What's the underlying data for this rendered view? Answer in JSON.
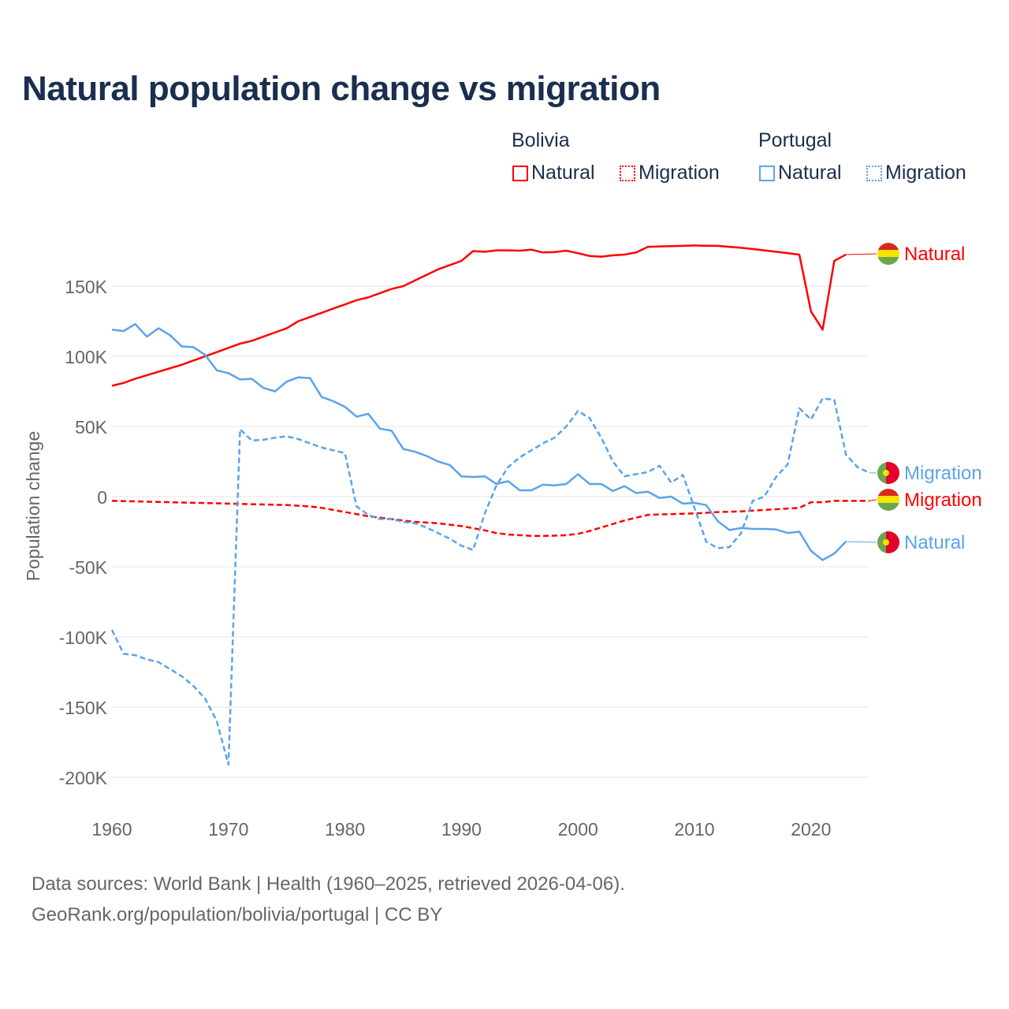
{
  "chart_data": {
    "type": "line",
    "title": "Natural population change vs migration",
    "xlabel": "",
    "ylabel": "Population change",
    "xlim": [
      1960,
      2025
    ],
    "ylim": [
      -200000,
      150000
    ],
    "x_ticks": [
      "1960",
      "1970",
      "1980",
      "1990",
      "2000",
      "2010",
      "2020"
    ],
    "y_ticks": [
      {
        "v": 150000,
        "label": "150K"
      },
      {
        "v": 100000,
        "label": "100K"
      },
      {
        "v": 50000,
        "label": "50K"
      },
      {
        "v": 0,
        "label": "0"
      },
      {
        "v": -50000,
        "label": "-50K"
      },
      {
        "v": -100000,
        "label": "-100K"
      },
      {
        "v": -150000,
        "label": "-150K"
      },
      {
        "v": -200000,
        "label": "-200K"
      }
    ],
    "grid": true,
    "legend_placement": "top-right",
    "units": "thousands",
    "series": [
      {
        "name": "Bolivia Natural",
        "country": "Bolivia",
        "kind": "Natural",
        "color": "#ff0000",
        "dash": false,
        "label": "Natural",
        "start": 1960,
        "values": [
          79,
          81,
          84,
          86.5,
          89,
          91.5,
          94,
          97,
          100,
          103,
          106,
          109,
          111,
          114,
          117,
          120,
          125,
          128,
          131,
          134,
          137,
          140,
          142,
          145,
          148,
          150,
          154,
          158,
          162,
          165,
          168,
          175,
          174.5,
          175.5,
          175.5,
          175.3,
          176,
          174,
          174.3,
          175.3,
          173.5,
          171.5,
          171,
          172,
          172.5,
          174,
          178,
          178.3,
          178.5,
          178.7,
          179,
          178.8,
          178.7,
          178,
          177.3,
          176.5,
          175.5,
          174.5,
          173.5,
          172.5,
          132,
          119,
          168,
          172.5
        ]
      },
      {
        "name": "Bolivia Migration",
        "country": "Bolivia",
        "kind": "Migration",
        "color": "#ff0000",
        "dash": true,
        "label": "Migration",
        "start": 1960,
        "values": [
          -3,
          -3.2,
          -3.4,
          -3.6,
          -3.8,
          -4,
          -4.2,
          -4.4,
          -4.6,
          -4.8,
          -5,
          -5.2,
          -5.4,
          -5.6,
          -5.8,
          -6,
          -6.5,
          -7,
          -8,
          -9.5,
          -11,
          -12.5,
          -14,
          -15,
          -16,
          -17,
          -18,
          -18.5,
          -19,
          -20,
          -21,
          -22.5,
          -24,
          -26,
          -27,
          -27.5,
          -28,
          -28,
          -27.8,
          -27.5,
          -26.5,
          -24.5,
          -22,
          -19.5,
          -17,
          -15,
          -13,
          -12.7,
          -12.5,
          -12.2,
          -12,
          -11.5,
          -11,
          -10.8,
          -10.5,
          -10,
          -9.5,
          -9,
          -8.5,
          -8,
          -4,
          -4,
          -3,
          -3,
          -3,
          -3
        ]
      },
      {
        "name": "Portugal Natural",
        "country": "Portugal",
        "kind": "Natural",
        "color": "#5ba3ea",
        "dash": false,
        "label": "Natural",
        "start": 1960,
        "values": [
          119,
          118,
          123,
          114,
          120,
          115,
          107,
          106.5,
          101,
          90,
          88,
          83.5,
          84,
          77.5,
          75,
          82,
          85,
          84.5,
          71,
          68,
          64,
          57,
          59,
          48.5,
          47,
          34,
          32,
          29,
          25,
          22.5,
          14.5,
          14,
          14.5,
          9,
          11,
          4.5,
          4.5,
          8.5,
          8,
          9,
          16,
          9,
          9,
          4,
          7.5,
          2.5,
          3.5,
          -1,
          0,
          -5,
          -4.5,
          -6,
          -17.5,
          -23.8,
          -22.4,
          -23,
          -23,
          -23.4,
          -25.9,
          -25,
          -38.7,
          -45.2,
          -40.6,
          -32
        ]
      },
      {
        "name": "Portugal Migration",
        "country": "Portugal",
        "kind": "Migration",
        "color": "#5ba3ea",
        "dash": true,
        "label": "Migration",
        "start": 1960,
        "values": [
          -95,
          -112,
          -113,
          -116,
          -118,
          -123,
          -128,
          -135,
          -144,
          -160,
          -191,
          48,
          40,
          40.5,
          42,
          43,
          41,
          38,
          35,
          33,
          31,
          -7,
          -13,
          -16,
          -16,
          -18,
          -19,
          -22,
          -26,
          -30,
          -35,
          -38,
          -12,
          8,
          21,
          28,
          33,
          38,
          42,
          50,
          61,
          56,
          42,
          25,
          14.5,
          16,
          17.5,
          22,
          10,
          15.5,
          -8,
          -32,
          -36.8,
          -36,
          -26,
          -3,
          0,
          14,
          23,
          63,
          55,
          70,
          69,
          30,
          21,
          17
        ]
      }
    ]
  },
  "legend": {
    "groups": [
      {
        "name": "Bolivia",
        "items": [
          {
            "label": "Natural",
            "color": "#ff0000",
            "dash": false
          },
          {
            "label": "Migration",
            "color": "#ff0000",
            "dash": true
          }
        ]
      },
      {
        "name": "Portugal",
        "items": [
          {
            "label": "Natural",
            "color": "#5ba3ea",
            "dash": false
          },
          {
            "label": "Migration",
            "color": "#5ba3ea",
            "dash": true
          }
        ]
      }
    ]
  },
  "footer": {
    "line1": "Data sources: World Bank | Health (1960–2025, retrieved 2026-04-06).",
    "line2": "GeoRank.org/population/bolivia/portugal | CC BY"
  }
}
